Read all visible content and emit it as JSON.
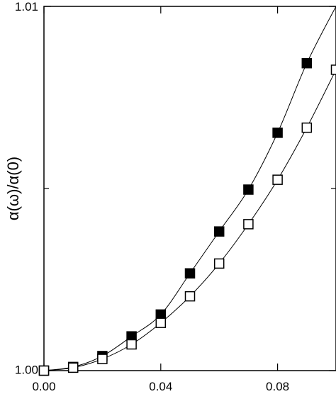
{
  "chart_data": {
    "type": "scatter",
    "title": "",
    "xlabel": "",
    "ylabel": "α(ω)/α(0)",
    "xlim": [
      0.0,
      0.1
    ],
    "ylim": [
      1.0,
      1.01
    ],
    "x_ticks": [
      0.0,
      0.04,
      0.08
    ],
    "x_tick_labels": [
      "0.00",
      "0.04",
      "0.08"
    ],
    "y_ticks": [
      1.0,
      1.01
    ],
    "y_tick_labels": [
      "1.00",
      "1.01"
    ],
    "y_minor_ticks": [
      1.005
    ],
    "grid": false,
    "legend": "none",
    "series": [
      {
        "marker": "filled-square",
        "color": "#000000",
        "x": [
          0.0,
          0.01,
          0.02,
          0.03,
          0.04,
          0.05,
          0.06,
          0.07,
          0.08,
          0.09
        ],
        "y": [
          1.0,
          1.0001,
          1.0004,
          1.00094,
          1.00154,
          1.00267,
          1.00382,
          1.00497,
          1.00653,
          1.00844
        ],
        "curve_end": [
          0.1,
          1.01
        ]
      },
      {
        "marker": "open-square",
        "color": "#000000",
        "x": [
          0.0,
          0.01,
          0.02,
          0.03,
          0.04,
          0.05,
          0.06,
          0.07,
          0.08,
          0.09,
          0.1
        ],
        "y": [
          1.0,
          1.00008,
          1.00032,
          1.00072,
          1.00131,
          1.00204,
          1.00294,
          1.00402,
          1.00524,
          1.00667,
          1.00826
        ]
      }
    ]
  }
}
